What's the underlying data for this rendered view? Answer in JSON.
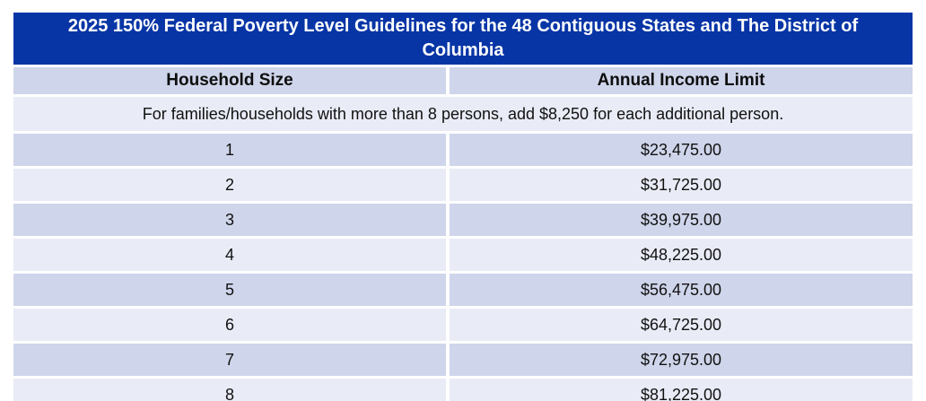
{
  "title": "2025 150% Federal Poverty Level Guidelines for the 48 Contiguous States and The District of Columbia",
  "columns": {
    "household_size": "Household Size",
    "annual_income_limit": "Annual Income Limit"
  },
  "note": "For families/households with more than 8 persons, add $8,250 for each additional person.",
  "rows": [
    {
      "household_size": "1",
      "annual_income_limit": "$23,475.00"
    },
    {
      "household_size": "2",
      "annual_income_limit": "$31,725.00"
    },
    {
      "household_size": "3",
      "annual_income_limit": "$39,975.00"
    },
    {
      "household_size": "4",
      "annual_income_limit": "$48,225.00"
    },
    {
      "household_size": "5",
      "annual_income_limit": "$56,475.00"
    },
    {
      "household_size": "6",
      "annual_income_limit": "$64,725.00"
    },
    {
      "household_size": "7",
      "annual_income_limit": "$72,975.00"
    },
    {
      "household_size": "8",
      "annual_income_limit": "$81,225.00"
    }
  ],
  "colors": {
    "title_bar": "#0735a6",
    "title_text": "#ffffff",
    "row_shaded": "#cfd5ea",
    "row_light": "#e9ecf6",
    "grid_gap": "#ffffff",
    "body_text": "#111111"
  }
}
